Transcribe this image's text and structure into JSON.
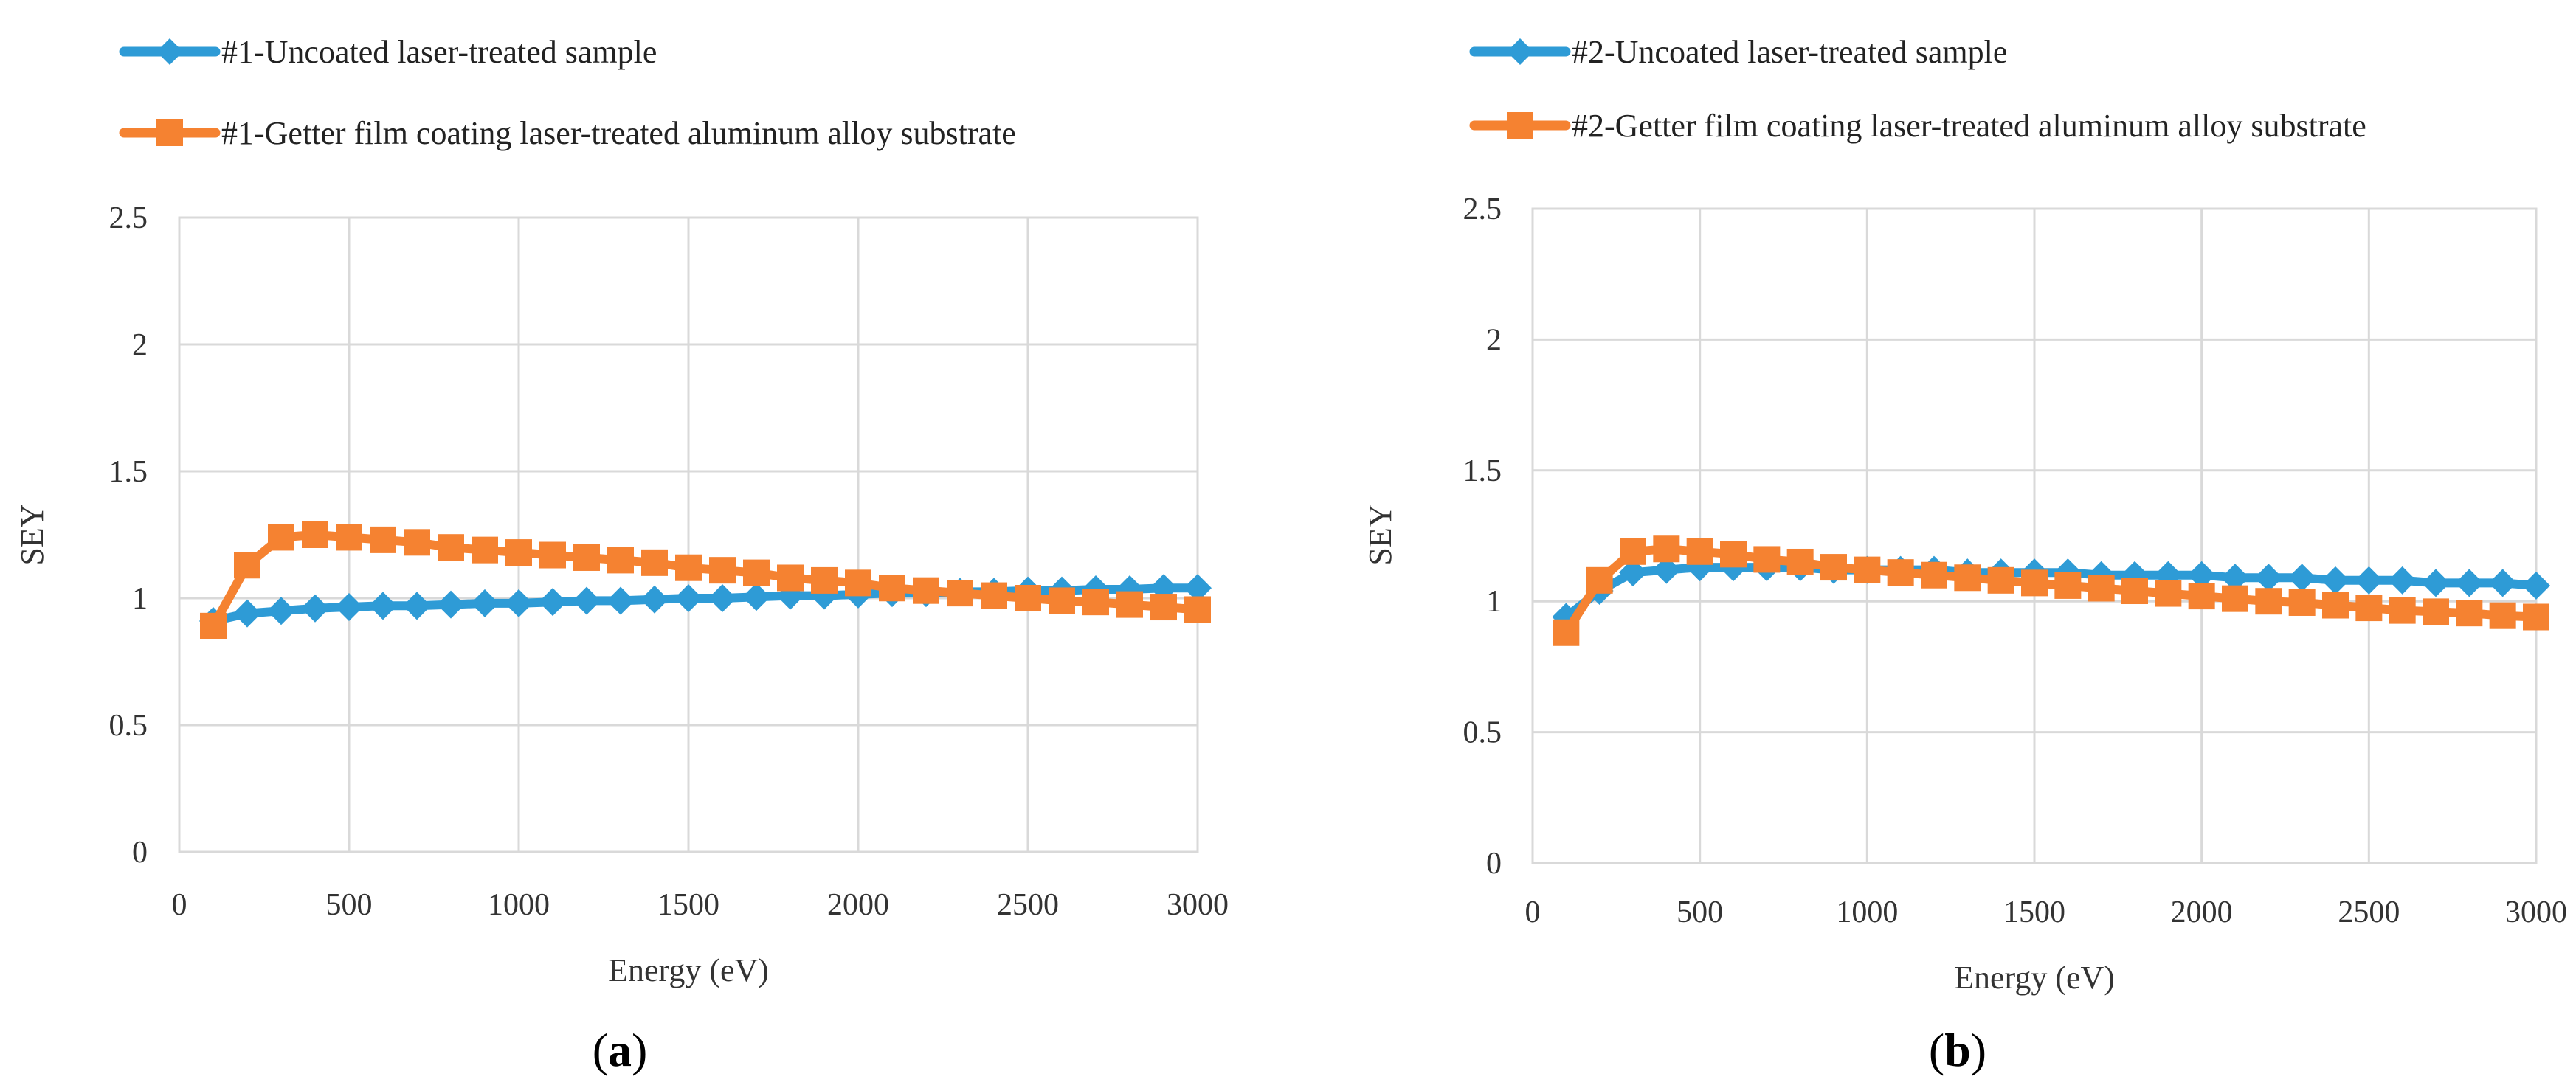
{
  "chart_data": [
    {
      "type": "line",
      "panel_label": "a",
      "title": "",
      "xlabel": "Energy (eV)",
      "ylabel": "SEY",
      "xlim": [
        0,
        3000
      ],
      "ylim": [
        0,
        2.5
      ],
      "xticks": [
        0,
        500,
        1000,
        1500,
        2000,
        2500,
        3000
      ],
      "yticks": [
        0,
        0.5,
        1,
        1.5,
        2,
        2.5
      ],
      "grid": true,
      "legend_position": "top",
      "x": [
        100,
        200,
        300,
        400,
        500,
        600,
        700,
        800,
        900,
        1000,
        1100,
        1200,
        1300,
        1400,
        1500,
        1600,
        1700,
        1800,
        1900,
        2000,
        2100,
        2200,
        2300,
        2400,
        2500,
        2600,
        2700,
        2800,
        2900,
        3000
      ],
      "series": [
        {
          "name": "#1-Uncoated laser-treated sample",
          "marker": "diamond",
          "color": "#2E9BD6",
          "values": [
            0.91,
            0.94,
            0.95,
            0.96,
            0.965,
            0.97,
            0.97,
            0.975,
            0.98,
            0.98,
            0.985,
            0.99,
            0.99,
            0.995,
            1.0,
            1.0,
            1.005,
            1.01,
            1.01,
            1.015,
            1.02,
            1.02,
            1.025,
            1.025,
            1.03,
            1.03,
            1.035,
            1.035,
            1.04,
            1.04
          ]
        },
        {
          "name": "#1-Getter film coating laser-treated aluminum alloy substrate",
          "marker": "square",
          "color": "#F58231",
          "values": [
            0.89,
            1.13,
            1.24,
            1.25,
            1.24,
            1.23,
            1.22,
            1.2,
            1.19,
            1.18,
            1.17,
            1.16,
            1.15,
            1.14,
            1.12,
            1.11,
            1.1,
            1.08,
            1.07,
            1.06,
            1.04,
            1.03,
            1.02,
            1.01,
            1.0,
            0.99,
            0.985,
            0.975,
            0.965,
            0.955
          ]
        }
      ]
    },
    {
      "type": "line",
      "panel_label": "b",
      "title": "",
      "xlabel": "Energy (eV)",
      "ylabel": "SEY",
      "xlim": [
        0,
        3000
      ],
      "ylim": [
        0,
        2.5
      ],
      "xticks": [
        0,
        500,
        1000,
        1500,
        2000,
        2500,
        3000
      ],
      "yticks": [
        0,
        0.5,
        1,
        1.5,
        2,
        2.5
      ],
      "grid": true,
      "legend_position": "top",
      "x": [
        100,
        200,
        300,
        400,
        500,
        600,
        700,
        800,
        900,
        1000,
        1100,
        1200,
        1300,
        1400,
        1500,
        1600,
        1700,
        1800,
        1900,
        2000,
        2100,
        2200,
        2300,
        2400,
        2500,
        2600,
        2700,
        2800,
        2900,
        3000
      ],
      "series": [
        {
          "name": "#2-Uncoated laser-treated sample",
          "marker": "diamond",
          "color": "#2E9BD6",
          "values": [
            0.94,
            1.04,
            1.11,
            1.12,
            1.13,
            1.13,
            1.13,
            1.13,
            1.12,
            1.12,
            1.12,
            1.12,
            1.11,
            1.11,
            1.11,
            1.11,
            1.1,
            1.1,
            1.1,
            1.1,
            1.09,
            1.09,
            1.09,
            1.08,
            1.08,
            1.08,
            1.07,
            1.07,
            1.07,
            1.06
          ]
        },
        {
          "name": "#2-Getter film coating laser-treated aluminum alloy substrate",
          "marker": "square",
          "color": "#F58231",
          "values": [
            0.88,
            1.08,
            1.19,
            1.2,
            1.19,
            1.18,
            1.16,
            1.15,
            1.13,
            1.12,
            1.11,
            1.1,
            1.09,
            1.08,
            1.07,
            1.06,
            1.05,
            1.04,
            1.03,
            1.02,
            1.01,
            1.0,
            0.995,
            0.985,
            0.975,
            0.965,
            0.96,
            0.955,
            0.945,
            0.94
          ]
        }
      ]
    }
  ]
}
